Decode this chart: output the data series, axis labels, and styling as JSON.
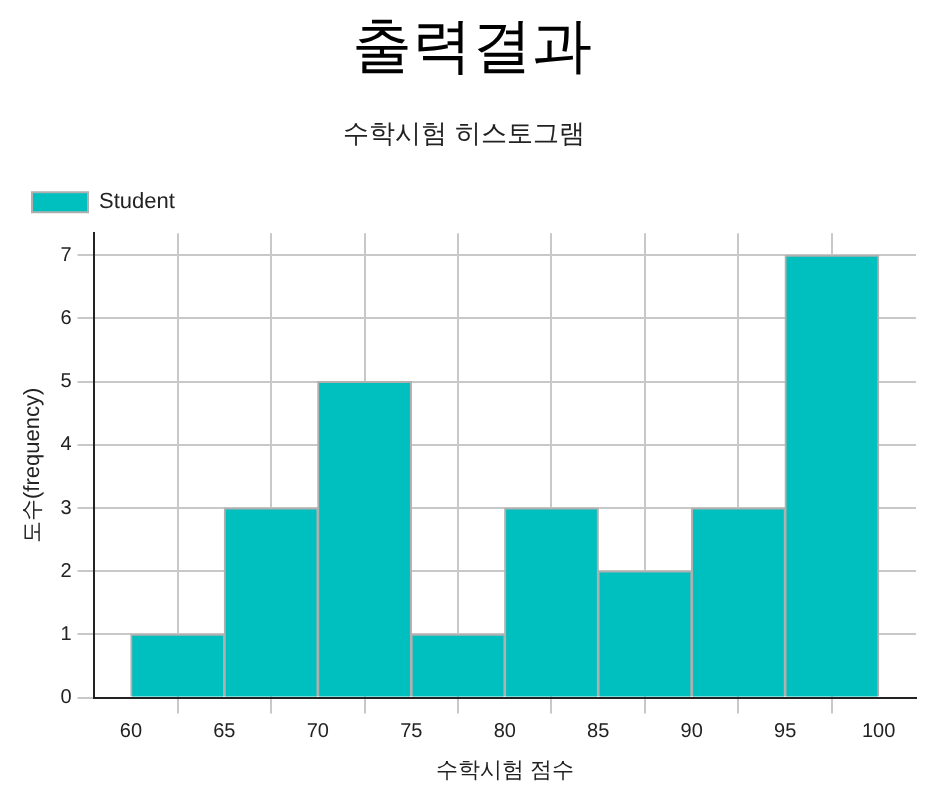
{
  "chart_data": {
    "type": "histogram",
    "title": "출력결과",
    "subtitle": "수학시험 히스토그램",
    "xlabel": "수학시험 점수",
    "ylabel": "도수(frequency)",
    "bins": [
      60,
      65,
      70,
      75,
      80,
      85,
      90,
      95,
      100
    ],
    "series": [
      {
        "name": "Student",
        "color": "#00bfbf",
        "values": [
          1,
          3,
          5,
          1,
          3,
          2,
          3,
          7
        ]
      }
    ],
    "xlim": [
      58,
      102
    ],
    "xticks": [
      60,
      65,
      70,
      75,
      80,
      85,
      90,
      95,
      100
    ],
    "ylim": [
      0,
      7.35
    ],
    "yticks": [
      0,
      1,
      2,
      3,
      4,
      5,
      6,
      7
    ],
    "grid": true,
    "legend": "top left"
  }
}
